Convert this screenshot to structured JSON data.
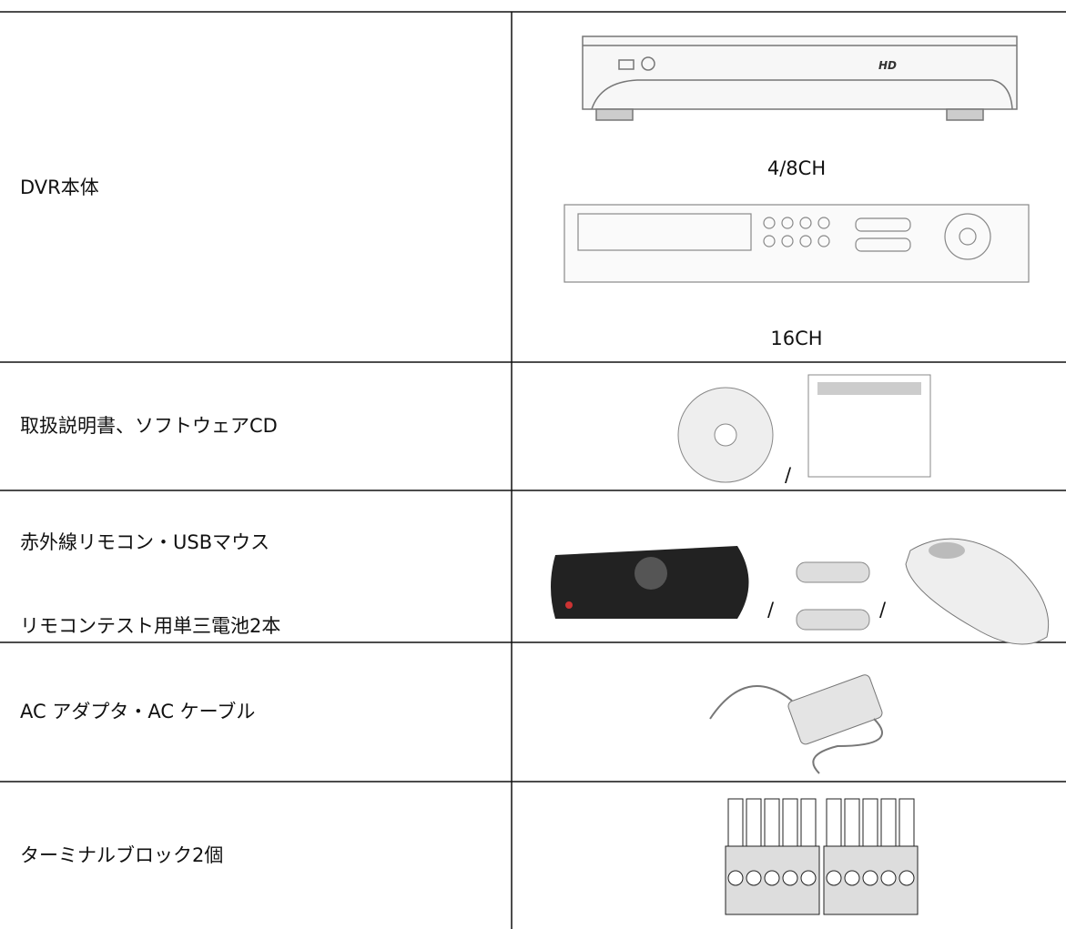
{
  "table": {
    "rows": [
      {
        "label": "DVR本体",
        "captions": [
          "4/8CH",
          "16CH"
        ]
      },
      {
        "label": "取扱説明書、ソフトウェアCD",
        "separators": [
          "/"
        ]
      },
      {
        "labels": [
          "赤外線リモコン・USBマウス",
          "リモコンテスト用単三電池2本"
        ],
        "separators": [
          "/",
          "/"
        ]
      },
      {
        "label": "AC アダプタ・AC ケーブル"
      },
      {
        "label": "ターミナルブロック2個"
      }
    ]
  }
}
